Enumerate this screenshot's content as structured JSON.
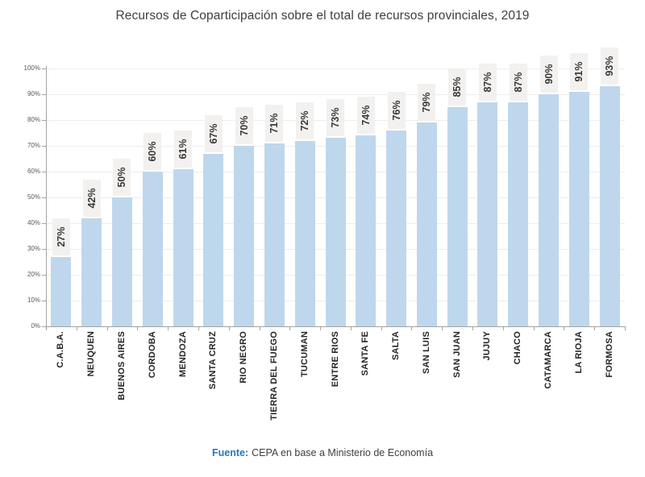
{
  "chart_data": {
    "type": "bar",
    "title": "Recursos de Coparticipación sobre el total de recursos provinciales, 2019",
    "categories": [
      "C.A.B.A.",
      "NEUQUEN",
      "BUENOS AIRES",
      "CORDOBA",
      "MENDOZA",
      "SANTA CRUZ",
      "RIO NEGRO",
      "TIERRA DEL FUEGO",
      "TUCUMAN",
      "ENTRE RIOS",
      "SANTA FE",
      "SALTA",
      "SAN LUIS",
      "SAN JUAN",
      "JUJUY",
      "CHACO",
      "CATAMARCA",
      "LA RIOJA",
      "FORMOSA"
    ],
    "values": [
      27,
      42,
      50,
      60,
      61,
      67,
      70,
      71,
      72,
      73,
      74,
      76,
      79,
      85,
      87,
      87,
      90,
      91,
      93
    ],
    "value_labels": [
      "27%",
      "42%",
      "50%",
      "60%",
      "61%",
      "67%",
      "70%",
      "71%",
      "72%",
      "73%",
      "74%",
      "76%",
      "79%",
      "85%",
      "87%",
      "87%",
      "90%",
      "91%",
      "93%"
    ],
    "xlabel": "",
    "ylabel": "",
    "ylim": [
      0,
      100
    ],
    "y_ticks": [
      "0%",
      "10%",
      "20%",
      "30%",
      "40%",
      "50%",
      "60%",
      "70%",
      "80%",
      "90%",
      "100%"
    ],
    "grid": true,
    "legend": "none",
    "bar_color": "#bfd7ec",
    "value_label_box_color": "#f2f1ef",
    "value_label_text_color": "#3a3a3a",
    "axis_color": "#a3a3a3",
    "gridline_color": "#efeceb"
  },
  "footer": {
    "source_label": "Fuente:",
    "source_text": "CEPA en base a Ministerio de Economía"
  }
}
